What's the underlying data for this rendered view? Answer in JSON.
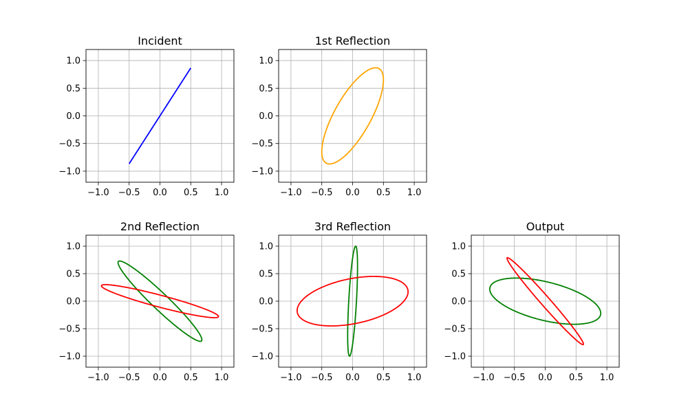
{
  "chart_data": [
    {
      "type": "line",
      "title": "Incident",
      "xlim": [
        -1.2,
        1.2
      ],
      "ylim": [
        -1.2,
        1.2
      ],
      "grid": true,
      "xticks": [
        "−1.0",
        "−0.5",
        "0.0",
        "0.5",
        "1.0"
      ],
      "yticks": [
        "−1.0",
        "−0.5",
        "0.0",
        "0.5",
        "1.0"
      ],
      "curves": [
        {
          "color": "#0000ff",
          "x_amplitude": 0.5,
          "y_amplitude": 0.866,
          "phase_difference_rad": 0.0
        }
      ]
    },
    {
      "type": "line",
      "title": "1st Reflection",
      "xlim": [
        -1.2,
        1.2
      ],
      "ylim": [
        -1.2,
        1.2
      ],
      "grid": true,
      "xticks": [
        "−1.0",
        "−0.5",
        "0.0",
        "0.5",
        "1.0"
      ],
      "yticks": [
        "−1.0",
        "−0.5",
        "0.0",
        "0.5",
        "1.0"
      ],
      "curves": [
        {
          "color": "#ffa500",
          "x_amplitude": 0.5,
          "y_amplitude": 0.87,
          "phase_difference_rad": 0.73
        }
      ]
    },
    {
      "type": "line",
      "title": "2nd Reflection",
      "xlim": [
        -1.2,
        1.2
      ],
      "ylim": [
        -1.2,
        1.2
      ],
      "grid": true,
      "xticks": [
        "−1.0",
        "−0.5",
        "0.0",
        "0.5",
        "1.0"
      ],
      "yticks": [
        "−1.0",
        "−0.5",
        "0.0",
        "0.5",
        "1.0"
      ],
      "curves": [
        {
          "color": "#008000",
          "x_amplitude": 0.68,
          "y_amplitude": 0.73,
          "phase_difference_rad": 2.86
        },
        {
          "color": "#ff0000",
          "x_amplitude": 0.95,
          "y_amplitude": 0.3,
          "phase_difference_rad": 2.76
        }
      ]
    },
    {
      "type": "line",
      "title": "3rd Reflection",
      "xlim": [
        -1.2,
        1.2
      ],
      "ylim": [
        -1.2,
        1.2
      ],
      "grid": true,
      "xticks": [
        "−1.0",
        "−0.5",
        "0.0",
        "0.5",
        "1.0"
      ],
      "yticks": [
        "−1.0",
        "−0.5",
        "0.0",
        "0.5",
        "1.0"
      ],
      "curves": [
        {
          "color": "#008000",
          "x_amplitude": 0.08,
          "y_amplitude": 1.0,
          "phase_difference_rad": 0.9
        },
        {
          "color": "#ff0000",
          "x_amplitude": 0.9,
          "y_amplitude": 0.45,
          "phase_difference_rad": 1.18
        }
      ]
    },
    {
      "type": "line",
      "title": "Output",
      "xlim": [
        -1.2,
        1.2
      ],
      "ylim": [
        -1.2,
        1.2
      ],
      "grid": true,
      "xticks": [
        "−1.0",
        "−0.5",
        "0.0",
        "0.5",
        "1.0"
      ],
      "yticks": [
        "−1.0",
        "−0.5",
        "0.0",
        "0.5",
        "1.0"
      ],
      "curves": [
        {
          "color": "#008000",
          "x_amplitude": 0.9,
          "y_amplitude": 0.42,
          "phase_difference_rad": 2.12
        },
        {
          "color": "#ff0000",
          "x_amplitude": 0.62,
          "y_amplitude": 0.79,
          "phase_difference_rad": 2.98
        }
      ]
    }
  ]
}
